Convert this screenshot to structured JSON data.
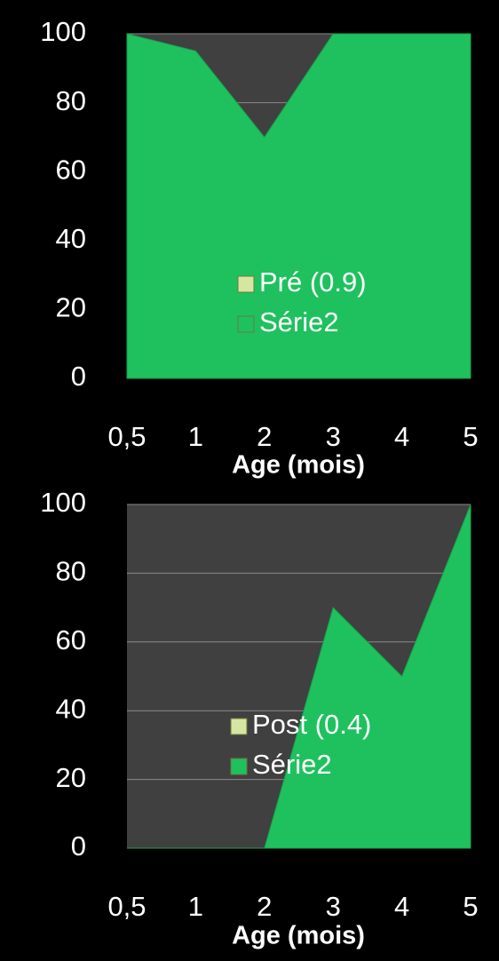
{
  "chart_data": [
    {
      "type": "area",
      "categories": [
        "0,5",
        "1",
        "2",
        "3",
        "4",
        "5"
      ],
      "series": [
        {
          "name": "Pré (0.9)",
          "color": "#d6e6a0",
          "values": [
            null,
            null,
            null,
            null,
            null,
            null
          ]
        },
        {
          "name": "Série2",
          "color": "#1fc15e",
          "values": [
            100,
            95,
            70,
            100,
            100,
            100
          ]
        }
      ],
      "x_label": "Age (mois)",
      "ylim": [
        0,
        100
      ],
      "yticks": [
        0,
        20,
        40,
        60,
        80,
        100
      ],
      "grid": true
    },
    {
      "type": "area",
      "categories": [
        "0,5",
        "1",
        "2",
        "3",
        "4",
        "5"
      ],
      "series": [
        {
          "name": "Post (0.4)",
          "color": "#d6e6a0",
          "values": [
            null,
            null,
            null,
            null,
            null,
            null
          ]
        },
        {
          "name": "Série2",
          "color": "#1fc15e",
          "values": [
            0,
            0,
            0,
            70,
            50,
            100
          ]
        }
      ],
      "x_label": "Age (mois)",
      "ylim": [
        0,
        100
      ],
      "yticks": [
        0,
        20,
        40,
        60,
        80,
        100
      ],
      "grid": true
    }
  ]
}
